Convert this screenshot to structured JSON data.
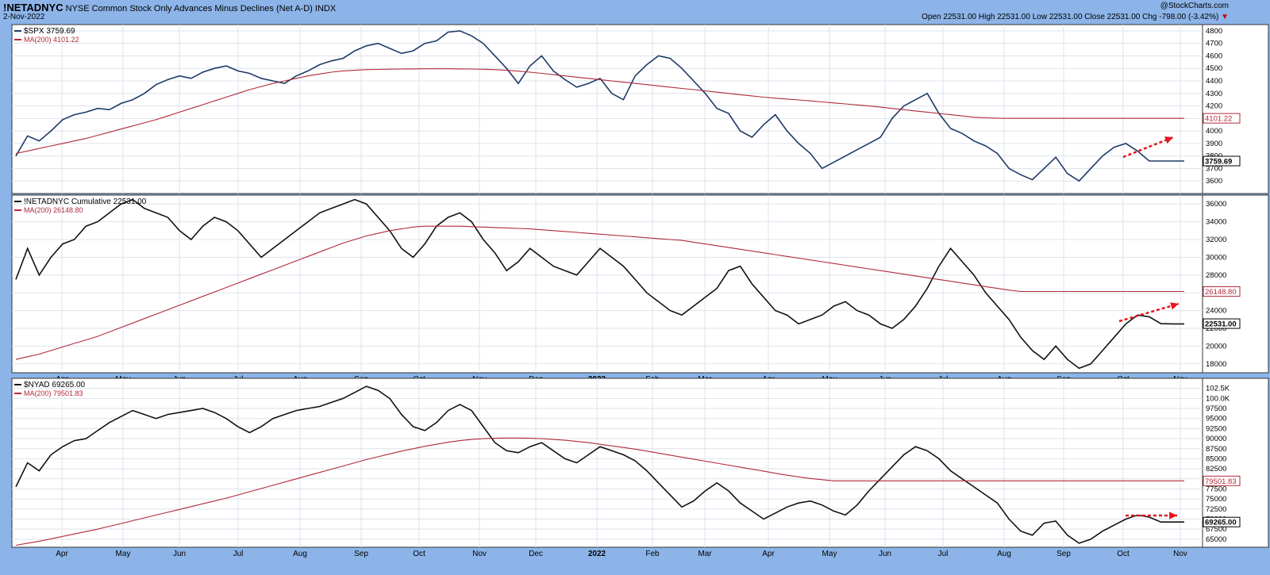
{
  "header": {
    "symbol": "!NETADNYC",
    "description": "NYSE Common Stock Only Advances Minus Declines (Net A-D)",
    "exchange": "INDX",
    "date": "2-Nov-2022",
    "ohlc": "Open 22531.00  High 22531.00  Low 22531.00  Close 22531.00  Chg -798.00 (-3.42%)",
    "chg_arrow": "▼",
    "watermark": "@StockCharts.com"
  },
  "colors": {
    "price_line": "#1f3a66",
    "ma_line": "#b02a3a",
    "arrow": "#e8141c",
    "panel_bg": "#ffffff",
    "grid": "#dde3ec"
  },
  "chart_data": [
    {
      "type": "line",
      "legend": "$SPX 3759.69",
      "ma_legend": "MA(200) 4101.22",
      "ylim": [
        3500,
        4850
      ],
      "yticks": [
        3600,
        3700,
        3800,
        3900,
        4000,
        4100,
        4200,
        4300,
        4400,
        4500,
        4600,
        4700,
        4800
      ],
      "last_value": "3759.69",
      "ma_value": "4101.22",
      "series": [
        {
          "name": "$SPX",
          "x": [
            0,
            1,
            2,
            3,
            4,
            5,
            6,
            7,
            8,
            9,
            10,
            11,
            12,
            13,
            14,
            15,
            16,
            17,
            18,
            19,
            20,
            21,
            22,
            23,
            24,
            25,
            26,
            27,
            28,
            29,
            30,
            31,
            32,
            33,
            34,
            35,
            36,
            37,
            38,
            39,
            40,
            41,
            42,
            43,
            44,
            45,
            46,
            47,
            48,
            49,
            50,
            51,
            52,
            53,
            54,
            55,
            56,
            57,
            58,
            59,
            60,
            61,
            62,
            63,
            64,
            65,
            66,
            67,
            68,
            69,
            70,
            71,
            72,
            73,
            74,
            75,
            76,
            77,
            78,
            79,
            80,
            81,
            82,
            83,
            84,
            85,
            86,
            87,
            88,
            89,
            90,
            91,
            92,
            93,
            94,
            95,
            96,
            97,
            98,
            99,
            100
          ],
          "values": [
            3800,
            3960,
            3920,
            4000,
            4090,
            4130,
            4150,
            4180,
            4170,
            4220,
            4250,
            4300,
            4370,
            4410,
            4440,
            4420,
            4470,
            4500,
            4520,
            4480,
            4460,
            4420,
            4400,
            4380,
            4440,
            4480,
            4530,
            4560,
            4580,
            4640,
            4680,
            4700,
            4660,
            4620,
            4640,
            4700,
            4720,
            4790,
            4800,
            4760,
            4700,
            4600,
            4500,
            4380,
            4520,
            4600,
            4480,
            4410,
            4350,
            4380,
            4420,
            4300,
            4250,
            4440,
            4530,
            4600,
            4580,
            4500,
            4400,
            4300,
            4180,
            4140,
            4000,
            3950,
            4050,
            4130,
            4000,
            3900,
            3820,
            3700,
            3750,
            3800,
            3850,
            3900,
            3950,
            4100,
            4200,
            4250,
            4300,
            4140,
            4020,
            3980,
            3920,
            3880,
            3820,
            3700,
            3650,
            3610,
            3700,
            3790,
            3660,
            3600,
            3700,
            3800,
            3870,
            3900,
            3840,
            3760,
            3759.69,
            3760,
            3760
          ]
        },
        {
          "name": "MA(200)",
          "values": [
            3820,
            3840,
            3860,
            3880,
            3900,
            3920,
            3940,
            3965,
            3990,
            4015,
            4040,
            4065,
            4090,
            4120,
            4150,
            4180,
            4210,
            4240,
            4270,
            4300,
            4330,
            4355,
            4380,
            4400,
            4420,
            4440,
            4455,
            4470,
            4480,
            4485,
            4490,
            4492,
            4494,
            4495,
            4496,
            4497,
            4497,
            4497,
            4496,
            4495,
            4493,
            4490,
            4485,
            4478,
            4470,
            4460,
            4450,
            4440,
            4430,
            4420,
            4410,
            4400,
            4390,
            4380,
            4370,
            4360,
            4350,
            4340,
            4330,
            4320,
            4310,
            4300,
            4290,
            4280,
            4270,
            4262,
            4255,
            4248,
            4240,
            4232,
            4224,
            4216,
            4208,
            4200,
            4190,
            4180,
            4170,
            4160,
            4150,
            4140,
            4130,
            4120,
            4110,
            4105,
            4101.22,
            4101,
            4101,
            4101,
            4101,
            4101,
            4101,
            4101,
            4101,
            4101,
            4101,
            4101,
            4101,
            4101,
            4101,
            4101,
            4101
          ]
        }
      ],
      "annotation": "dotted red arrow rising"
    },
    {
      "type": "line",
      "legend": "!NETADNYC Cumulative 22531.00",
      "ma_legend": "MA(200) 26148.80",
      "ylim": [
        17000,
        37000
      ],
      "yticks": [
        18000,
        20000,
        22000,
        24000,
        26000,
        28000,
        30000,
        32000,
        34000,
        36000
      ],
      "last_value": "22531.00",
      "ma_value": "26148.80",
      "series": [
        {
          "name": "!NETADNYC",
          "values": [
            27500,
            31000,
            28000,
            30000,
            31500,
            32000,
            33500,
            34000,
            35000,
            36000,
            36500,
            35500,
            35000,
            34500,
            33000,
            32000,
            33500,
            34500,
            34000,
            33000,
            31500,
            30000,
            31000,
            32000,
            33000,
            34000,
            35000,
            35500,
            36000,
            36500,
            36000,
            34500,
            33000,
            31000,
            30000,
            31500,
            33500,
            34500,
            35000,
            34000,
            32000,
            30500,
            28500,
            29500,
            31000,
            30000,
            29000,
            28500,
            28000,
            29500,
            31000,
            30000,
            29000,
            27500,
            26000,
            25000,
            24000,
            23500,
            24500,
            25500,
            26500,
            28500,
            29000,
            27000,
            25500,
            24000,
            23500,
            22500,
            23000,
            23500,
            24500,
            25000,
            24000,
            23500,
            22500,
            22000,
            23000,
            24500,
            26500,
            29000,
            31000,
            29500,
            28000,
            26000,
            24500,
            23000,
            21000,
            19500,
            18500,
            20000,
            18500,
            17500,
            18000,
            19500,
            21000,
            22500,
            23500,
            23300,
            22531,
            22500,
            22500
          ]
        },
        {
          "name": "MA(200)",
          "values": [
            18500,
            18800,
            19100,
            19500,
            19900,
            20300,
            20700,
            21100,
            21600,
            22100,
            22600,
            23100,
            23600,
            24100,
            24600,
            25100,
            25600,
            26100,
            26600,
            27100,
            27600,
            28100,
            28600,
            29100,
            29600,
            30100,
            30600,
            31100,
            31600,
            32000,
            32400,
            32700,
            33000,
            33200,
            33400,
            33500,
            33500,
            33500,
            33500,
            33450,
            33400,
            33350,
            33300,
            33250,
            33200,
            33100,
            33000,
            32900,
            32800,
            32700,
            32600,
            32500,
            32400,
            32300,
            32200,
            32100,
            32000,
            31900,
            31700,
            31500,
            31300,
            31100,
            30900,
            30700,
            30500,
            30300,
            30100,
            29900,
            29700,
            29500,
            29300,
            29100,
            28900,
            28700,
            28500,
            28300,
            28100,
            27900,
            27700,
            27500,
            27300,
            27100,
            26900,
            26700,
            26500,
            26300,
            26148.8,
            26148,
            26148,
            26148,
            26148,
            26148,
            26148,
            26148,
            26148,
            26148,
            26148,
            26148,
            26148,
            26148,
            26148
          ]
        }
      ],
      "annotation": "dotted red arrow rising"
    },
    {
      "type": "line",
      "legend": "$NYAD 69265.00",
      "ma_legend": "MA(200) 79501.83",
      "ylim": [
        63000,
        105000
      ],
      "yticks": [
        65000,
        67500,
        70000,
        72500,
        75000,
        77500,
        80000,
        82500,
        85000,
        87500,
        90000,
        92500,
        95000,
        97500,
        100000,
        102500
      ],
      "ytick_labels": [
        "65000",
        "67500",
        "70000",
        "72500",
        "75000",
        "77500",
        "80000",
        "82500",
        "85000",
        "87500",
        "90000",
        "92500",
        "95000",
        "97500",
        "100.0K",
        "102.5K"
      ],
      "last_value": "69265.00",
      "ma_value": "79501.83",
      "series": [
        {
          "name": "$NYAD",
          "values": [
            78000,
            84000,
            82000,
            86000,
            88000,
            89500,
            90000,
            92000,
            94000,
            95500,
            97000,
            96000,
            95000,
            96000,
            96500,
            97000,
            97500,
            96500,
            95000,
            93000,
            91500,
            93000,
            95000,
            96000,
            97000,
            97500,
            98000,
            99000,
            100000,
            101500,
            103000,
            102000,
            100000,
            96000,
            93000,
            92000,
            94000,
            97000,
            98500,
            97000,
            93000,
            89000,
            87000,
            86500,
            88000,
            89000,
            87000,
            85000,
            84000,
            86000,
            88000,
            87000,
            86000,
            84500,
            82000,
            79000,
            76000,
            73000,
            74500,
            77000,
            79000,
            77000,
            74000,
            72000,
            70000,
            71500,
            73000,
            74000,
            74500,
            73500,
            72000,
            71000,
            73500,
            77000,
            80000,
            83000,
            86000,
            88000,
            87000,
            85000,
            82000,
            80000,
            78000,
            76000,
            74000,
            70000,
            67000,
            66000,
            69000,
            69500,
            66000,
            64000,
            65000,
            67000,
            68500,
            70000,
            71000,
            70500,
            69265,
            69265,
            69265
          ]
        },
        {
          "name": "MA(200)",
          "values": [
            63500,
            64000,
            64500,
            65100,
            65700,
            66300,
            66900,
            67500,
            68200,
            68900,
            69600,
            70300,
            71000,
            71700,
            72400,
            73100,
            73800,
            74500,
            75200,
            76000,
            76800,
            77600,
            78400,
            79200,
            80000,
            80800,
            81600,
            82400,
            83200,
            84000,
            84800,
            85500,
            86200,
            86900,
            87500,
            88100,
            88600,
            89100,
            89500,
            89800,
            90000,
            90100,
            90150,
            90150,
            90100,
            90000,
            89800,
            89600,
            89300,
            89000,
            88600,
            88200,
            87800,
            87400,
            86900,
            86400,
            85900,
            85400,
            84900,
            84400,
            83900,
            83400,
            82900,
            82400,
            81900,
            81400,
            80900,
            80500,
            80100,
            79800,
            79501.83,
            79500,
            79500,
            79500,
            79500,
            79500,
            79500,
            79500,
            79500,
            79500,
            79500,
            79500,
            79500,
            79500,
            79500,
            79500,
            79500,
            79500,
            79500,
            79500,
            79500,
            79500,
            79500,
            79500,
            79500,
            79500,
            79500,
            79500,
            79500,
            79500,
            79500
          ]
        }
      ],
      "annotation": "dotted red arrow flat"
    }
  ],
  "x_axis": {
    "labels": [
      "Apr",
      "May",
      "Jun",
      "Jul",
      "Aug",
      "Sep",
      "Oct",
      "Nov",
      "Dec",
      "2022",
      "Feb",
      "Mar",
      "Apr",
      "May",
      "Jun",
      "Jul",
      "Aug",
      "Sep",
      "Oct",
      "Nov"
    ]
  }
}
